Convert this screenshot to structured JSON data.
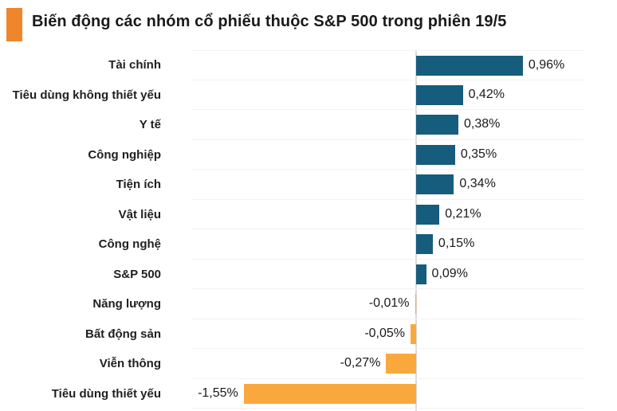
{
  "title": {
    "text": "Biến động các nhóm cổ phiếu thuộc S&P 500 trong phiên 19/5"
  },
  "colors": {
    "positive_bar": "#165C7D",
    "negative_bar": "#F9A83E",
    "title_marker": "#F0862B",
    "gridline": "#F2F2F2",
    "zero_line": "#D9D9D9",
    "text": "#1A1A1A"
  },
  "chart_data": {
    "type": "bar",
    "orientation": "horizontal",
    "title": "Biến động các nhóm cổ phiếu thuộc S&P 500 trong phiên 19/5",
    "xlabel": "",
    "ylabel": "",
    "xlim": [
      -2.0,
      1.5
    ],
    "grid": "horizontal row separators, no tick labels",
    "legend": "none",
    "zero_axis_line": true,
    "value_label_format": "comma-decimal percent, outside bar end",
    "categories": [
      "Tài chính",
      "Tiêu dùng không thiết yếu",
      "Y tế",
      "Công nghiệp",
      "Tiện ích",
      "Vật liệu",
      "Công nghệ",
      "S&P 500",
      "Năng lượng",
      "Bất động sản",
      "Viễn thông",
      "Tiêu dùng thiết yếu"
    ],
    "values": [
      0.96,
      0.42,
      0.38,
      0.35,
      0.34,
      0.21,
      0.15,
      0.09,
      -0.01,
      -0.05,
      -0.27,
      -1.55
    ],
    "value_labels": [
      "0,96%",
      "0,42%",
      "0,38%",
      "0,35%",
      "0,34%",
      "0,21%",
      "0,15%",
      "0,09%",
      "-0,01%",
      "-0,05%",
      "-0,27%",
      "-1,55%"
    ]
  }
}
